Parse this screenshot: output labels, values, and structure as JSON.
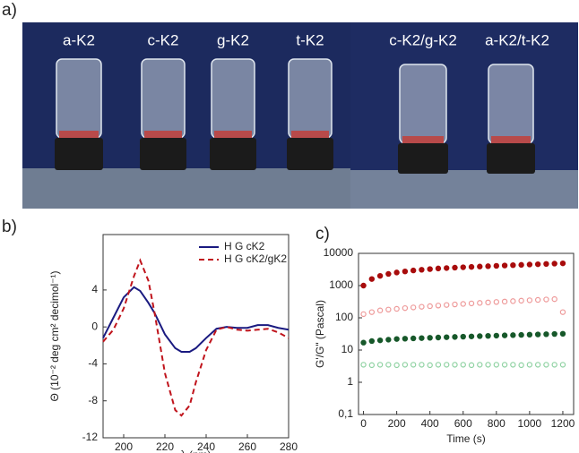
{
  "figure": {
    "panel_labels": [
      "a)",
      "b)",
      "c)"
    ],
    "photo_labels": [
      "a-K2",
      "c-K2",
      "g-K2",
      "t-K2",
      "c-K2/g-K2",
      "a-K2/t-K2"
    ]
  },
  "chart_data": [
    {
      "type": "line",
      "xlabel": "λ (nm)",
      "ylabel": "Θ (10⁻² deg cm² decimol⁻¹)",
      "x": [
        190,
        195,
        200,
        205,
        208,
        212,
        215,
        220,
        225,
        228,
        232,
        235,
        240,
        245,
        250,
        255,
        260,
        265,
        270,
        275,
        280
      ],
      "series": [
        {
          "name": "H G cK2",
          "color": "#1a1a80",
          "dash": false,
          "values": [
            -1.2,
            1,
            3.2,
            4.3,
            3.9,
            2.6,
            1.5,
            -0.8,
            -2.3,
            -2.7,
            -2.7,
            -2.3,
            -1.2,
            -0.2,
            0,
            -0.1,
            -0.1,
            0.2,
            0.2,
            -0.1,
            -0.3
          ]
        },
        {
          "name": "H G cK2/gK2",
          "color": "#c0141c",
          "dash": true,
          "values": [
            -1.6,
            -0.3,
            2,
            5.5,
            7.2,
            5,
            1.5,
            -5,
            -9,
            -9.6,
            -8.5,
            -6,
            -2.5,
            -0.3,
            0,
            -0.3,
            -0.4,
            -0.3,
            -0.2,
            -0.6,
            -1.2
          ]
        }
      ],
      "xlim": [
        190,
        280
      ],
      "xticks": [
        200,
        220,
        240,
        260,
        280
      ],
      "ylim": [
        -12,
        10
      ],
      "yticks": [
        -12,
        -8,
        -4,
        0,
        4
      ],
      "legend": "upper right"
    },
    {
      "type": "scatter",
      "xlabel": "Time (s)",
      "ylabel": "G'/G\" (Pascal)",
      "x": [
        0,
        50,
        100,
        150,
        200,
        250,
        300,
        350,
        400,
        450,
        500,
        550,
        600,
        650,
        700,
        750,
        800,
        850,
        900,
        950,
        1000,
        1050,
        1100,
        1150,
        1200
      ],
      "series": [
        {
          "color": "#a80c0c",
          "filled": true,
          "values": [
            1000,
            1600,
            2000,
            2300,
            2550,
            2750,
            2950,
            3100,
            3250,
            3400,
            3500,
            3600,
            3700,
            3800,
            3900,
            4000,
            4100,
            4200,
            4300,
            4400,
            4500,
            4600,
            4700,
            4800,
            4900
          ]
        },
        {
          "color": "#ee9a9a",
          "filled": false,
          "values": [
            130,
            150,
            170,
            180,
            190,
            200,
            210,
            220,
            230,
            240,
            250,
            260,
            270,
            280,
            290,
            300,
            310,
            320,
            330,
            340,
            350,
            360,
            370,
            380,
            150
          ]
        },
        {
          "color": "#17582a",
          "filled": true,
          "values": [
            17,
            19,
            20,
            21,
            22,
            22.5,
            23,
            23.5,
            24,
            24.5,
            25,
            25.5,
            26,
            26.5,
            27,
            27.5,
            28,
            28.5,
            29,
            29.5,
            30,
            30.5,
            31,
            31.5,
            32
          ]
        },
        {
          "color": "#8fd2a2",
          "filled": false,
          "values": [
            3.5,
            3.4,
            3.5,
            3.5,
            3.4,
            3.5,
            3.5,
            3.5,
            3.4,
            3.5,
            3.5,
            3.5,
            3.5,
            3.4,
            3.5,
            3.5,
            3.5,
            3.5,
            3.5,
            3.4,
            3.5,
            3.5,
            3.5,
            3.5,
            3.5
          ]
        }
      ],
      "xlim": [
        -30,
        1265
      ],
      "xticks": [
        0,
        200,
        400,
        600,
        800,
        1000,
        1200
      ],
      "ylim": [
        0.1,
        10000
      ],
      "yscale": "log",
      "yticks": [
        {
          "value": 0.1,
          "label": "0,1"
        },
        1,
        10,
        100,
        1000,
        10000
      ]
    }
  ]
}
